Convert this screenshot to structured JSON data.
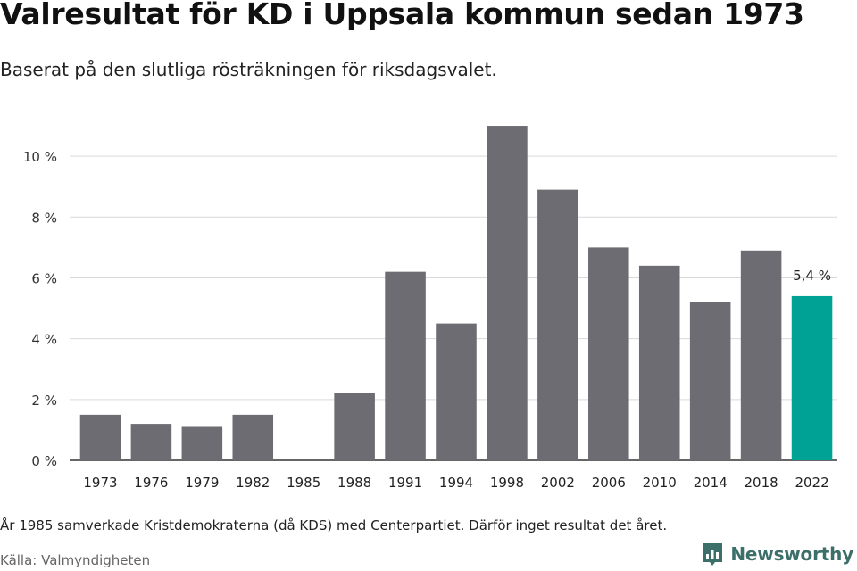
{
  "title": "Valresultat för KD i Uppsala kommun sedan 1973",
  "subtitle": "Baserat på den slutliga rösträkningen för riksdagsvalet.",
  "footnote": "År 1985 samverkade Kristdemokraterna (då KDS) med Centerpartiet. Därför inget resultat det året.",
  "source": "Källa: Valmyndigheten",
  "brand": {
    "name": "Newsworthy",
    "icon": "bar-chart-logo-icon",
    "color": "#3c6e6a"
  },
  "colors": {
    "bar": "#6d6c72",
    "highlight": "#00a295",
    "grid": "#d9d9d9",
    "axis": "#333333"
  },
  "chart_data": {
    "type": "bar",
    "categories": [
      "1973",
      "1976",
      "1979",
      "1982",
      "1985",
      "1988",
      "1991",
      "1994",
      "1998",
      "2002",
      "2006",
      "2010",
      "2014",
      "2018",
      "2022"
    ],
    "values": [
      1.5,
      1.2,
      1.1,
      1.5,
      null,
      2.2,
      6.2,
      4.5,
      11.0,
      8.9,
      7.0,
      6.4,
      5.2,
      6.9,
      5.4
    ],
    "highlight_category": "2022",
    "data_labels": [
      {
        "category": "2022",
        "text": "5,4 %"
      }
    ],
    "y_ticks": [
      0,
      2,
      4,
      6,
      8,
      10
    ],
    "y_tick_labels": [
      "0 %",
      "2 %",
      "4 %",
      "6 %",
      "8 %",
      "10 %"
    ],
    "ylim": [
      0,
      11.5
    ],
    "grid": true,
    "legend": "none",
    "xlabel": "",
    "ylabel": ""
  }
}
